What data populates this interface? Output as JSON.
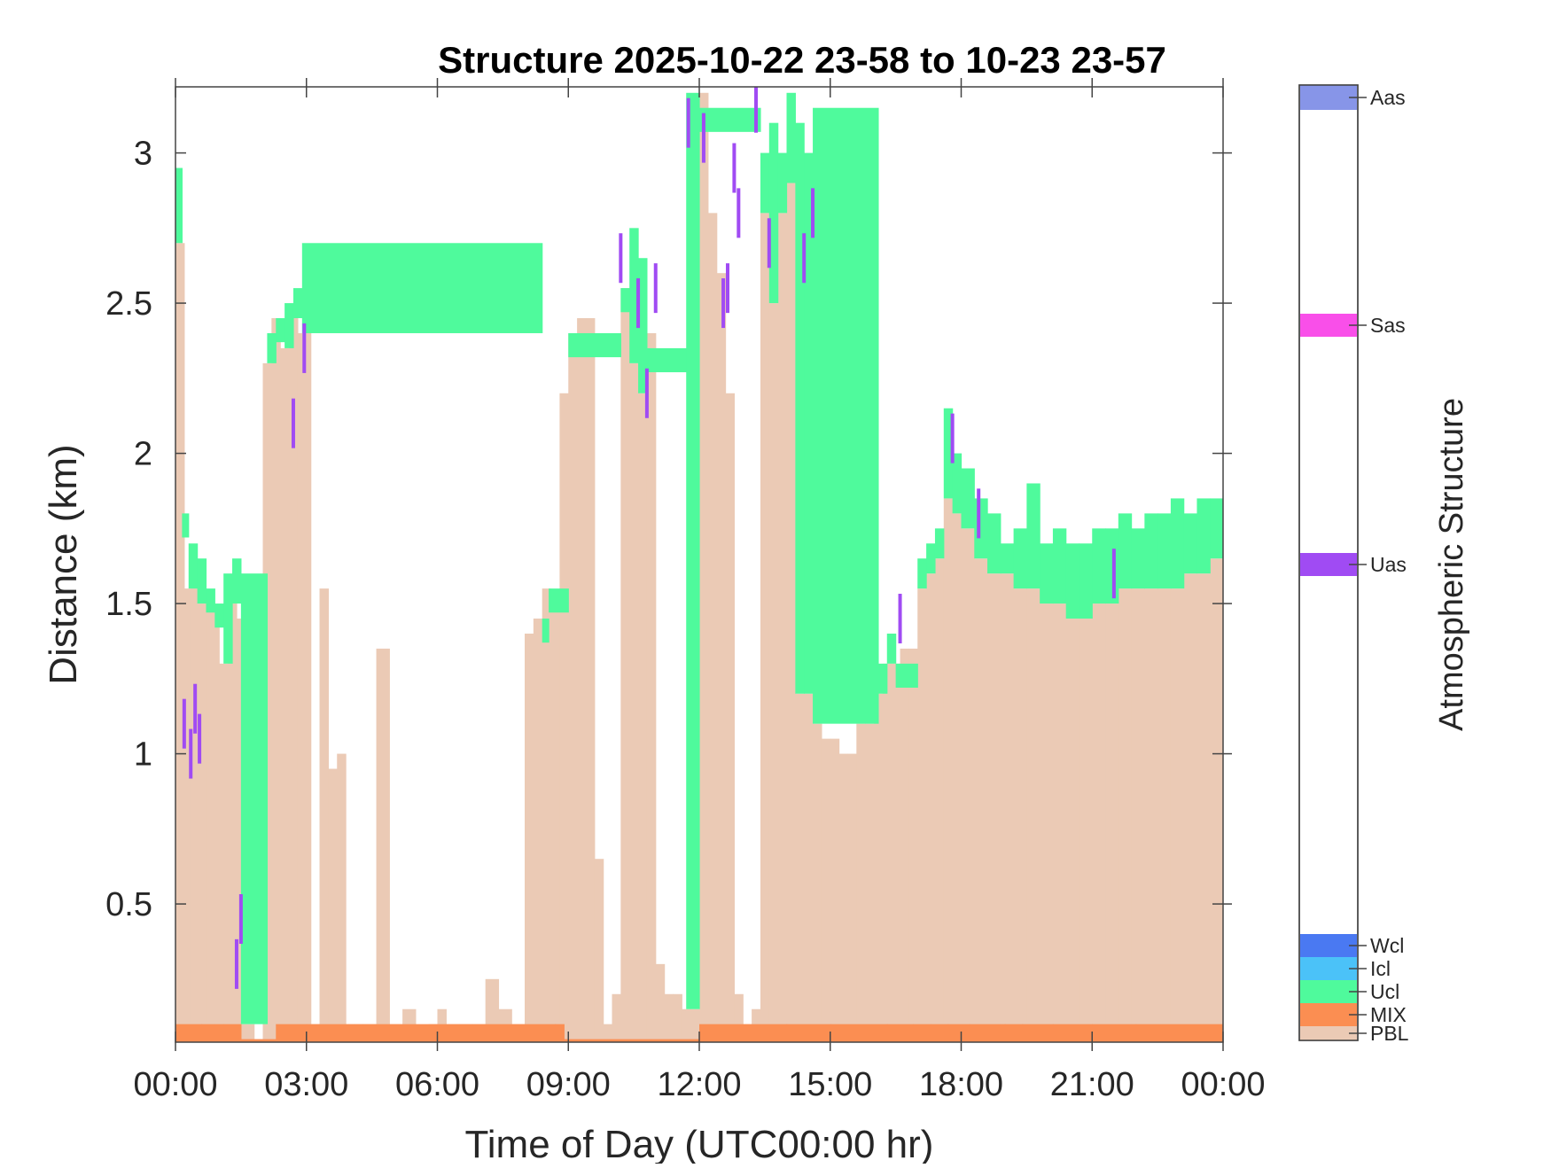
{
  "chart_data": {
    "type": "area",
    "title": "Structure 2025-10-22 23-58 to 10-23 23-57",
    "xlabel": "Time of Day (UTC00:00 hr)",
    "ylabel": "Distance (km)",
    "xlim": [
      0,
      24
    ],
    "ylim": [
      0.04,
      3.22
    ],
    "x_ticks": [
      0,
      3,
      6,
      9,
      12,
      15,
      18,
      21,
      24
    ],
    "x_tick_labels": [
      "00:00",
      "03:00",
      "06:00",
      "09:00",
      "12:00",
      "15:00",
      "18:00",
      "21:00",
      "00:00"
    ],
    "y_ticks": [
      0.5,
      1,
      1.5,
      2,
      2.5,
      3
    ],
    "y_tick_labels": [
      "0.5",
      "1",
      "1.5",
      "2",
      "2.5",
      "3"
    ],
    "grid": false,
    "colorbar": {
      "label": "Atmospheric Structure",
      "categories": [
        {
          "name": "PBL",
          "color": "#ebcab5"
        },
        {
          "name": "MIX",
          "color": "#fb8e52"
        },
        {
          "name": "Ucl",
          "color": "#4ffa9c"
        },
        {
          "name": "Icl",
          "color": "#4bc2f8"
        },
        {
          "name": "Wcl",
          "color": "#4a79f2"
        },
        {
          "name": "Uas",
          "color": "#a04bf3"
        },
        {
          "name": "Sas",
          "color": "#f94fe9"
        },
        {
          "name": "Aas",
          "color": "#8795e8"
        }
      ]
    },
    "series": [
      {
        "name": "PBL",
        "color": "#ebcab5",
        "x": [
          0.0,
          0.2,
          0.35,
          0.5,
          0.7,
          0.9,
          1.0,
          1.2,
          1.4,
          1.5,
          1.8,
          2.0,
          2.2,
          2.4,
          2.6,
          2.8,
          3.0,
          3.1,
          3.3,
          3.5,
          3.7,
          3.9,
          4.1,
          4.3,
          4.6,
          4.9,
          5.2,
          5.5,
          5.8,
          6.0,
          6.2,
          6.5,
          6.8,
          7.1,
          7.4,
          7.7,
          8.0,
          8.2,
          8.4,
          8.6,
          8.8,
          9.0,
          9.2,
          9.4,
          9.6,
          9.8,
          10.0,
          10.2,
          10.4,
          10.6,
          10.8,
          11.0,
          11.2,
          11.4,
          11.6,
          11.8,
          12.0,
          12.2,
          12.4,
          12.6,
          12.8,
          13.0,
          13.2,
          13.4,
          13.6,
          13.8,
          14.0,
          14.2,
          14.4,
          14.6,
          14.8,
          15.0,
          15.2,
          15.4,
          15.6,
          15.8,
          16.0,
          16.2,
          16.4,
          16.6,
          16.8,
          17.0,
          17.2,
          17.4,
          17.6,
          17.8,
          18.0,
          18.3,
          18.6,
          18.9,
          19.2,
          19.5,
          19.8,
          20.1,
          20.4,
          20.7,
          21.0,
          21.3,
          21.6,
          21.9,
          22.2,
          22.5,
          22.8,
          23.1,
          23.4,
          23.7,
          24.0
        ],
        "values": [
          2.7,
          1.55,
          1.6,
          1.5,
          1.5,
          1.45,
          1.3,
          1.5,
          1.45,
          0.1,
          0.05,
          2.3,
          2.45,
          2.35,
          2.45,
          2.4,
          2.5,
          0.1,
          1.55,
          0.95,
          1.0,
          0.1,
          0.1,
          0.1,
          1.35,
          0.1,
          0.15,
          0.05,
          0.1,
          0.15,
          0.1,
          0.1,
          0.1,
          0.25,
          0.15,
          0.1,
          1.4,
          1.45,
          1.55,
          1.5,
          2.2,
          2.4,
          2.45,
          2.45,
          0.65,
          0.1,
          0.2,
          2.55,
          2.3,
          2.2,
          2.4,
          0.3,
          0.2,
          0.2,
          0.15,
          0.15,
          3.2,
          2.8,
          2.6,
          2.2,
          0.2,
          0.1,
          0.15,
          2.8,
          2.5,
          2.8,
          2.9,
          1.2,
          1.2,
          1.1,
          1.05,
          1.05,
          1.0,
          1.0,
          1.1,
          1.1,
          1.2,
          1.3,
          1.3,
          1.35,
          1.35,
          1.55,
          1.6,
          1.65,
          1.85,
          1.8,
          1.75,
          1.65,
          1.6,
          1.6,
          1.55,
          1.55,
          1.5,
          1.5,
          1.45,
          1.45,
          1.5,
          1.5,
          1.55,
          1.55,
          1.55,
          1.55,
          1.55,
          1.6,
          1.6,
          1.65,
          1.65
        ]
      },
      {
        "name": "Ucl",
        "color": "#4ffa9c",
        "x": [
          0.0,
          0.15,
          0.3,
          0.5,
          0.7,
          0.9,
          1.1,
          1.3,
          1.5,
          2.1,
          2.3,
          2.5,
          2.7,
          2.9,
          8.4,
          8.55,
          9.0,
          10.2,
          10.4,
          10.6,
          10.8,
          11.7,
          12.0,
          13.4,
          13.6,
          13.8,
          14.0,
          14.2,
          14.4,
          14.6,
          16.1,
          16.3,
          16.5,
          17.0,
          17.2,
          17.4,
          17.6,
          17.8,
          18.0,
          18.3,
          18.6,
          18.9,
          19.2,
          19.5,
          19.8,
          20.1,
          20.4,
          20.7,
          21.0,
          21.3,
          21.6,
          21.9,
          22.2,
          22.5,
          22.8,
          23.1,
          23.4,
          23.7,
          24.0
        ],
        "values": [
          2.95,
          1.8,
          1.7,
          1.65,
          1.55,
          1.5,
          1.6,
          1.65,
          1.6,
          2.4,
          2.45,
          2.5,
          2.55,
          2.7,
          1.45,
          1.55,
          2.4,
          2.55,
          2.75,
          2.65,
          2.35,
          3.2,
          3.15,
          3.0,
          3.1,
          3.0,
          3.2,
          3.1,
          3.0,
          3.15,
          1.3,
          1.4,
          1.3,
          1.65,
          1.7,
          1.75,
          2.15,
          2.0,
          1.95,
          1.85,
          1.8,
          1.7,
          1.75,
          1.9,
          1.7,
          1.75,
          1.7,
          1.7,
          1.75,
          1.75,
          1.8,
          1.75,
          1.8,
          1.8,
          1.85,
          1.8,
          1.85,
          1.85,
          1.85
        ]
      },
      {
        "name": "MIX",
        "color": "#fb8e52",
        "x": [
          0.0,
          0.6,
          1.1,
          1.5,
          2.3,
          3.0,
          8.7,
          8.9,
          12.0,
          14.0,
          15.0,
          16.3,
          16.9,
          17.3,
          17.7,
          18.2,
          19.0,
          19.4,
          20.1,
          21.0,
          22.0,
          24.0
        ],
        "values": [
          0.1,
          0.1,
          0.1,
          0.05,
          0.1,
          0.1,
          0.1,
          0.05,
          0.1,
          0.1,
          0.1,
          0.1,
          0.1,
          0.1,
          0.1,
          0.1,
          0.1,
          0.1,
          0.1,
          0.1,
          0.1,
          0.1
        ]
      },
      {
        "name": "Uas",
        "color": "#a04bf3",
        "x": [
          0.2,
          0.35,
          0.45,
          0.55,
          1.4,
          1.5,
          2.7,
          2.95,
          10.2,
          10.6,
          10.8,
          11.0,
          11.75,
          12.1,
          12.55,
          12.65,
          12.8,
          12.9,
          13.3,
          13.6,
          14.4,
          14.6,
          17.8,
          18.4,
          21.5,
          16.6
        ],
        "values": [
          1.1,
          1.0,
          1.15,
          1.05,
          0.3,
          0.45,
          2.1,
          2.35,
          2.65,
          2.5,
          2.2,
          2.55,
          3.1,
          3.05,
          2.5,
          2.55,
          2.95,
          2.8,
          3.15,
          2.7,
          2.65,
          2.8,
          2.05,
          1.8,
          1.6,
          1.45
        ]
      }
    ]
  }
}
